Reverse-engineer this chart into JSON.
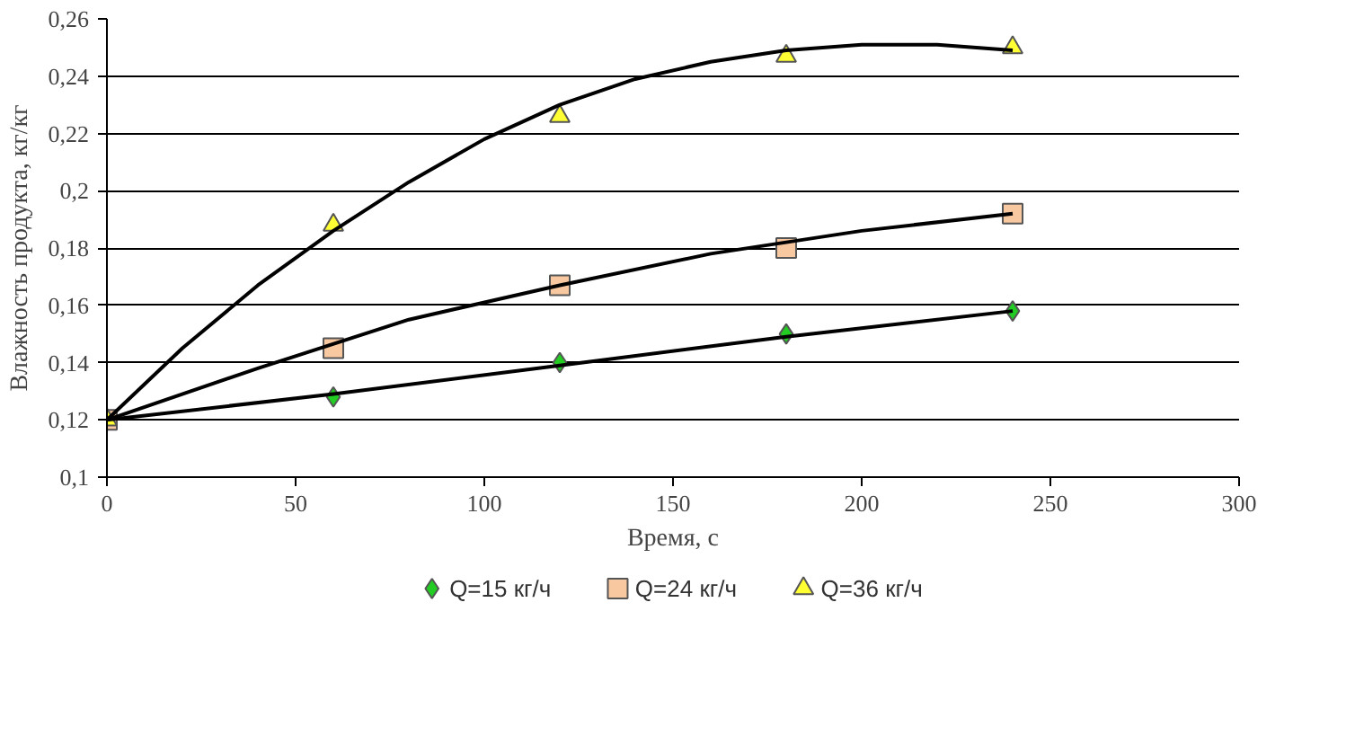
{
  "chart_data": {
    "type": "scatter",
    "xlabel": "Время, с",
    "ylabel": "Влажность продукта, кг/кг",
    "x": [
      0,
      60,
      120,
      180,
      240
    ],
    "series": [
      {
        "name": "Q=15 кг/ч",
        "color": "#22cc22",
        "marker": "diamond",
        "values": [
          null,
          0.128,
          0.14,
          0.15,
          0.158
        ]
      },
      {
        "name": "Q=24 кг/ч",
        "color": "#f8c8a0",
        "marker": "square",
        "values": [
          0.12,
          0.145,
          0.167,
          0.18,
          0.192
        ]
      },
      {
        "name": "Q=36 кг/ч",
        "color": "#ffff33",
        "marker": "triangle",
        "values": [
          0.12,
          0.188,
          0.226,
          0.247,
          0.25
        ]
      },
      {
        "type": "line",
        "color": "#000000",
        "x": [
          0,
          60,
          120,
          180,
          240
        ],
        "values": [
          0.12,
          0.129,
          0.139,
          0.149,
          0.158
        ]
      },
      {
        "type": "line",
        "color": "#000000",
        "x": [
          0,
          40,
          80,
          120,
          160,
          200,
          240
        ],
        "values": [
          0.12,
          0.138,
          0.155,
          0.167,
          0.178,
          0.186,
          0.192
        ]
      },
      {
        "type": "line",
        "color": "#000000",
        "x": [
          0,
          20,
          40,
          60,
          80,
          100,
          120,
          140,
          160,
          180,
          200,
          220,
          240
        ],
        "values": [
          0.12,
          0.145,
          0.167,
          0.186,
          0.203,
          0.218,
          0.23,
          0.239,
          0.245,
          0.249,
          0.251,
          0.251,
          0.249
        ]
      }
    ],
    "xlim": [
      0,
      300
    ],
    "xticks": [
      0,
      50,
      100,
      150,
      200,
      250,
      300
    ],
    "ylim": [
      0.1,
      0.26
    ],
    "yticks": [
      {
        "value": 0.1,
        "label": "0,1"
      },
      {
        "value": 0.12,
        "label": "0,12"
      },
      {
        "value": 0.14,
        "label": "0,14"
      },
      {
        "value": 0.16,
        "label": "0,16"
      },
      {
        "value": 0.18,
        "label": "0,18"
      },
      {
        "value": 0.2,
        "label": "0,2"
      },
      {
        "value": 0.22,
        "label": "0,22"
      },
      {
        "value": 0.24,
        "label": "0,24"
      },
      {
        "value": 0.26,
        "label": "0,26"
      }
    ],
    "grid": "y",
    "legend": "bottom"
  }
}
